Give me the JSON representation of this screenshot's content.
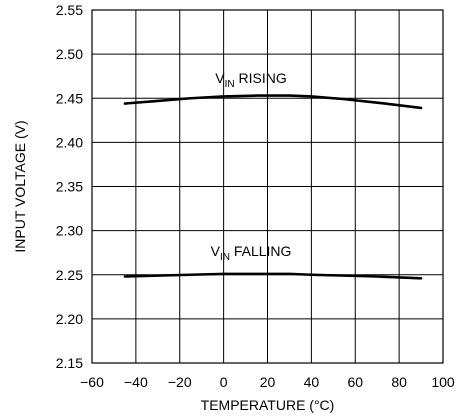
{
  "chart_data": {
    "type": "line",
    "xlabel": "TEMPERATURE (°C)",
    "ylabel": "INPUT VOLTAGE (V)",
    "xlim": [
      -60,
      100
    ],
    "ylim": [
      2.15,
      2.55
    ],
    "x_ticks": [
      -60,
      -40,
      -20,
      0,
      20,
      40,
      60,
      80,
      100
    ],
    "y_ticks": [
      2.15,
      2.2,
      2.25,
      2.3,
      2.35,
      2.4,
      2.45,
      2.5,
      2.55
    ],
    "x_tick_labels": [
      "−60",
      "−40",
      "−20",
      "0",
      "20",
      "40",
      "60",
      "80",
      "100"
    ],
    "y_tick_labels": [
      "2.15",
      "2.20",
      "2.25",
      "2.30",
      "2.35",
      "2.40",
      "2.45",
      "2.50",
      "2.55"
    ],
    "grid": true,
    "series": [
      {
        "name_main": "V",
        "name_sub": "IN",
        "name_rest": " RISING",
        "x": [
          -45,
          -30,
          -15,
          0,
          15,
          20,
          30,
          40,
          55,
          70,
          90
        ],
        "y": [
          2.444,
          2.447,
          2.45,
          2.452,
          2.453,
          2.453,
          2.453,
          2.452,
          2.449,
          2.445,
          2.439
        ]
      },
      {
        "name_main": "V",
        "name_sub": "IN",
        "name_rest": " FALLING",
        "x": [
          -45,
          -30,
          -15,
          0,
          15,
          20,
          30,
          40,
          55,
          70,
          90
        ],
        "y": [
          2.248,
          2.249,
          2.25,
          2.251,
          2.251,
          2.251,
          2.251,
          2.25,
          2.249,
          2.248,
          2.246
        ]
      }
    ]
  }
}
